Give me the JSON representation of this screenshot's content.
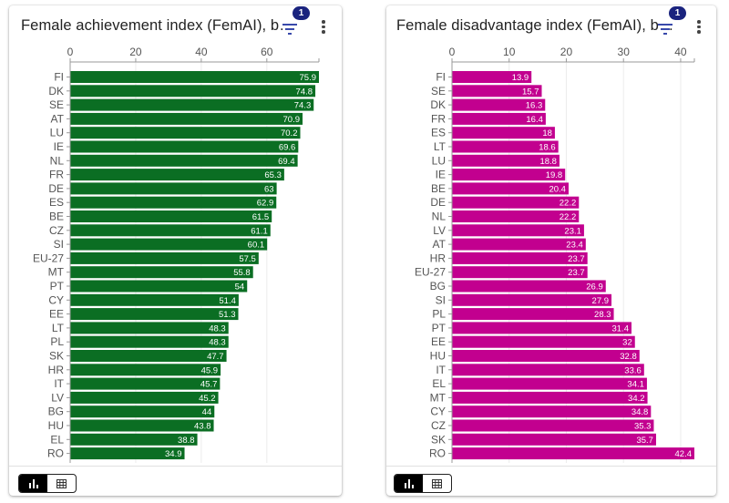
{
  "cards": [
    {
      "title": "Female achievement index (FemAI), b…",
      "filter_badge": "1",
      "view_toggle": {
        "chart": "chart-view",
        "table": "table-view",
        "active": "chart"
      }
    },
    {
      "title": "Female disadvantage index (FemAI), b…",
      "filter_badge": "1",
      "view_toggle": {
        "chart": "chart-view",
        "table": "table-view",
        "active": "chart"
      }
    }
  ],
  "icons": {
    "filter": "filter-icon",
    "more": "more-vert-icon",
    "bar_chart": "bar-chart-icon",
    "table": "table-icon"
  },
  "chart_data": [
    {
      "type": "bar",
      "orientation": "horizontal",
      "title": "Female achievement index (FemAI), b…",
      "color": "#0b6e23",
      "xlim": [
        0,
        75.9
      ],
      "xticks": [
        "0",
        "20",
        "40",
        "60"
      ],
      "xtick_values": [
        0,
        20,
        40,
        60
      ],
      "grid": true,
      "categories": [
        "FI",
        "DK",
        "SE",
        "AT",
        "LU",
        "IE",
        "NL",
        "FR",
        "DE",
        "ES",
        "BE",
        "CZ",
        "SI",
        "EU-27",
        "MT",
        "PT",
        "CY",
        "EE",
        "LT",
        "PL",
        "SK",
        "HR",
        "IT",
        "LV",
        "BG",
        "HU",
        "EL",
        "RO"
      ],
      "values": [
        75.9,
        74.8,
        74.3,
        70.9,
        70.2,
        69.6,
        69.4,
        65.3,
        63,
        62.9,
        61.5,
        61.1,
        60.1,
        57.5,
        55.8,
        54,
        51.4,
        51.3,
        48.3,
        48.3,
        47.7,
        45.9,
        45.7,
        45.2,
        44,
        43.8,
        38.8,
        34.9
      ],
      "labels": [
        "75.9",
        "74.8",
        "74.3",
        "70.9",
        "70.2",
        "69.6",
        "69.4",
        "65.3",
        "63",
        "62.9",
        "61.5",
        "61.1",
        "60.1",
        "57.5",
        "55.8",
        "54",
        "51.4",
        "51.3",
        "48.3",
        "48.3",
        "47.7",
        "45.9",
        "45.7",
        "45.2",
        "44",
        "43.8",
        "38.8",
        "34.9"
      ]
    },
    {
      "type": "bar",
      "orientation": "horizontal",
      "title": "Female disadvantage index (FemAI), b…",
      "color": "#c2008f",
      "xlim": [
        0,
        42.4
      ],
      "xticks": [
        "0",
        "10",
        "20",
        "30",
        "40"
      ],
      "xtick_values": [
        0,
        10,
        20,
        30,
        40
      ],
      "grid": true,
      "categories": [
        "FI",
        "SE",
        "DK",
        "FR",
        "ES",
        "LT",
        "LU",
        "IE",
        "BE",
        "DE",
        "NL",
        "LV",
        "AT",
        "HR",
        "EU-27",
        "BG",
        "SI",
        "PL",
        "PT",
        "EE",
        "HU",
        "IT",
        "EL",
        "MT",
        "CY",
        "CZ",
        "SK",
        "RO"
      ],
      "values": [
        13.9,
        15.7,
        16.3,
        16.4,
        18,
        18.6,
        18.8,
        19.8,
        20.4,
        22.2,
        22.2,
        23.1,
        23.4,
        23.7,
        23.7,
        26.9,
        27.9,
        28.3,
        31.4,
        32,
        32.8,
        33.6,
        34.1,
        34.2,
        34.8,
        35.3,
        35.7,
        42.4
      ],
      "labels": [
        "13.9",
        "15.7",
        "16.3",
        "16.4",
        "18",
        "18.6",
        "18.8",
        "19.8",
        "20.4",
        "22.2",
        "22.2",
        "23.1",
        "23.4",
        "23.7",
        "23.7",
        "26.9",
        "27.9",
        "28.3",
        "31.4",
        "32",
        "32.8",
        "33.6",
        "34.1",
        "34.2",
        "34.8",
        "35.3",
        "35.7",
        "42.4"
      ]
    }
  ]
}
